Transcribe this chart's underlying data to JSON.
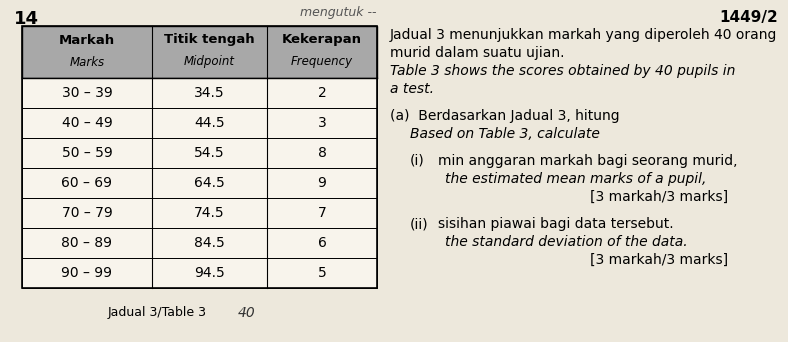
{
  "page_number_left": "14",
  "page_number_right": "1449/2",
  "handwritten_top": "mengutuk --",
  "table_caption": "Jadual 3/Table 3",
  "table_footer_note": "40",
  "col_headers": [
    "Markah\nMarks",
    "Titik tengah\nMidpoint",
    "Kekerapan\nFrequency"
  ],
  "rows": [
    [
      "30 – 39",
      "34.5",
      "2"
    ],
    [
      "40 – 49",
      "44.5",
      "3"
    ],
    [
      "50 – 59",
      "54.5",
      "8"
    ],
    [
      "60 – 69",
      "64.5",
      "9"
    ],
    [
      "70 – 79",
      "74.5",
      "7"
    ],
    [
      "80 – 89",
      "84.5",
      "6"
    ],
    [
      "90 – 99",
      "94.5",
      "5"
    ]
  ],
  "bg_color": "#ede8dc",
  "header_bg": "#a8a8a8",
  "cell_bg_white": "#f8f4ec",
  "right_block": [
    {
      "text": "Jadual 3 menunjukkan markah yang diperoleh 40 orang",
      "italic": false,
      "indent": 0
    },
    {
      "text": "murid dalam suatu ujian.",
      "italic": false,
      "indent": 0
    },
    {
      "text": "Table 3 shows the scores obtained by 40 pupils in",
      "italic": true,
      "indent": 0
    },
    {
      "text": "a test.",
      "italic": true,
      "indent": 0
    },
    {
      "text": "",
      "italic": false,
      "indent": 0
    },
    {
      "text": "(a)  Berdasarkan Jadual 3, hitung",
      "italic": false,
      "indent": 0
    },
    {
      "text": "Based on Table 3, calculate",
      "italic": true,
      "indent": 1
    },
    {
      "text": "",
      "italic": false,
      "indent": 0
    },
    {
      "text": "(i)",
      "italic": false,
      "indent": 1,
      "inline": "min anggaran markah bagi seorang murid,",
      "inline_italic": false
    },
    {
      "text": "the estimated mean marks of a pupil,",
      "italic": true,
      "indent": 2
    },
    {
      "text": "[3 markah/3 marks]",
      "italic": false,
      "indent": 3
    },
    {
      "text": "",
      "italic": false,
      "indent": 0
    },
    {
      "text": "(ii)",
      "italic": false,
      "indent": 1,
      "inline": "sisihan piawai bagi data tersebut.",
      "inline_italic": false
    },
    {
      "text": "the standard deviation of the data.",
      "italic": true,
      "indent": 2
    },
    {
      "text": "[3 markah/3 marks]",
      "italic": false,
      "indent": 3
    }
  ]
}
